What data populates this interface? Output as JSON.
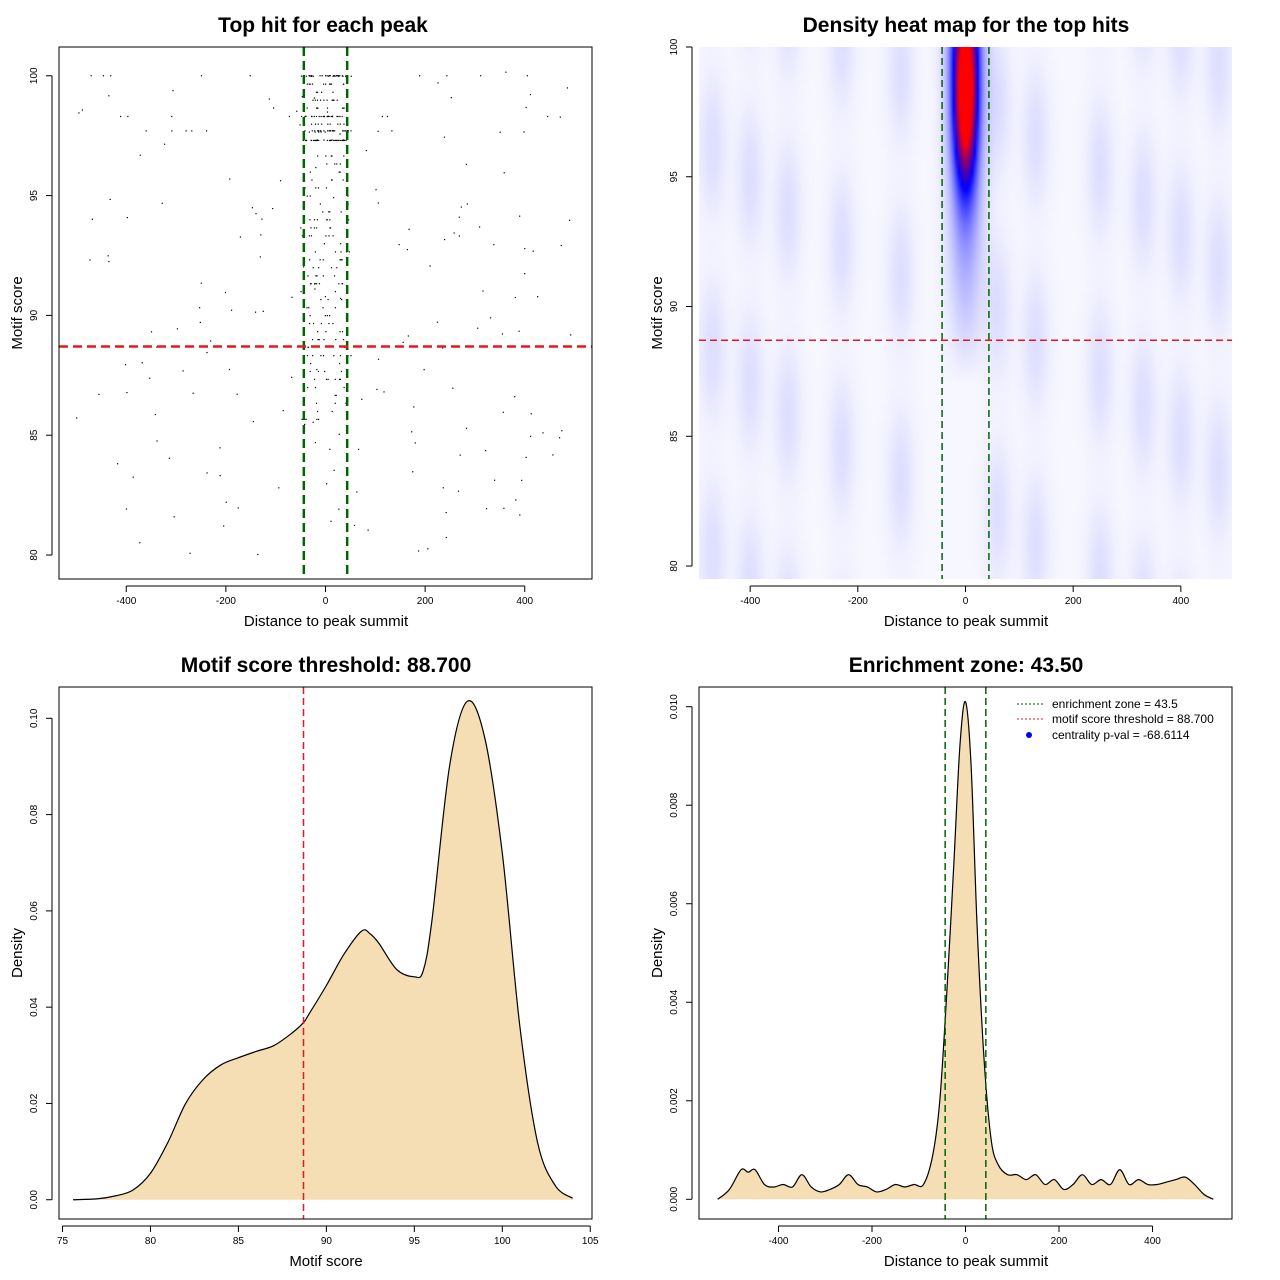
{
  "colors": {
    "enrichment_line": "#006400",
    "threshold_line": "#e41a1c",
    "density_fill": "#f5deb3",
    "point": "#000000",
    "heat_low": "#ffffff",
    "heat_mid": "#0000ff",
    "heat_high": "#ff0000",
    "legend_dot": "#0000ff"
  },
  "chart_data": [
    {
      "id": "scatter",
      "type": "scatter",
      "title": "Top hit for each peak",
      "xlabel": "Distance to peak summit",
      "ylabel": "Motif score",
      "xlim": [
        -535,
        535
      ],
      "ylim": [
        79,
        101.2
      ],
      "xticks": [
        -400,
        -200,
        0,
        200,
        400
      ],
      "yticks": [
        80,
        85,
        90,
        95,
        100
      ],
      "vlines": [
        -43.5,
        43.5
      ],
      "hline": 88.7,
      "point_seed": 7,
      "central_band": [
        -55,
        55
      ],
      "central_fraction": 0.55,
      "total_points": 520
    },
    {
      "id": "heatmap",
      "type": "heatmap",
      "title": "Density heat map for the top hits",
      "xlabel": "Distance to peak summit",
      "ylabel": "Motif score",
      "xlim": [
        -495,
        495
      ],
      "ylim": [
        79.5,
        100
      ],
      "xticks": [
        -400,
        -200,
        0,
        200,
        400
      ],
      "yticks": [
        80,
        85,
        90,
        95,
        100
      ],
      "vlines": [
        -43.5,
        43.5
      ],
      "hline": 88.7,
      "hotspot": {
        "x": 0,
        "y": 98.2,
        "sx": 14,
        "sy": 2.2
      },
      "column": {
        "x": 0,
        "sx": 22
      }
    },
    {
      "id": "score_density",
      "type": "area",
      "title": "Motif score threshold: 88.700",
      "xlabel": "Motif score",
      "ylabel": "Density",
      "xlim": [
        74.8,
        105.1
      ],
      "ylim": [
        -0.004,
        0.1065
      ],
      "xticks": [
        75,
        80,
        85,
        90,
        95,
        100,
        105
      ],
      "yticks": [
        0,
        0.02,
        0.04,
        0.06,
        0.08,
        0.1
      ],
      "ytick_labels": [
        "0.00",
        "0.02",
        "0.04",
        "0.06",
        "0.08",
        "0.10"
      ],
      "vline": 88.7,
      "x": [
        75.6,
        77,
        78,
        79,
        80,
        81,
        82,
        83,
        84,
        85,
        86,
        87,
        88,
        88.7,
        89,
        90,
        91,
        92,
        92.5,
        93,
        94,
        95,
        95.5,
        96,
        97,
        98,
        99,
        100,
        101,
        102,
        103,
        104
      ],
      "y": [
        0.0,
        0.0002,
        0.0008,
        0.002,
        0.0055,
        0.012,
        0.02,
        0.025,
        0.028,
        0.0295,
        0.0308,
        0.032,
        0.0345,
        0.0368,
        0.0385,
        0.0445,
        0.051,
        0.0558,
        0.0552,
        0.0532,
        0.0478,
        0.0463,
        0.0475,
        0.058,
        0.09,
        0.1035,
        0.096,
        0.072,
        0.036,
        0.012,
        0.003,
        0.0003
      ]
    },
    {
      "id": "distance_density",
      "type": "area",
      "title": "Enrichment zone: 43.50",
      "xlabel": "Distance to peak summit",
      "ylabel": "Density",
      "xlim": [
        -570,
        570
      ],
      "ylim": [
        -0.0004,
        0.0104
      ],
      "xticks": [
        -400,
        -200,
        0,
        200,
        400
      ],
      "yticks": [
        0,
        0.002,
        0.004,
        0.006,
        0.008,
        0.01
      ],
      "ytick_labels": [
        "0.000",
        "0.002",
        "0.004",
        "0.006",
        "0.008",
        "0.010"
      ],
      "vlines": [
        -43.5,
        43.5
      ],
      "x": [
        -530,
        -505,
        -480,
        -465,
        -450,
        -430,
        -410,
        -390,
        -370,
        -350,
        -330,
        -310,
        -290,
        -270,
        -250,
        -230,
        -210,
        -190,
        -170,
        -150,
        -130,
        -110,
        -90,
        -70,
        -55,
        -40,
        -25,
        -12,
        0,
        12,
        25,
        40,
        55,
        70,
        90,
        110,
        130,
        150,
        170,
        190,
        210,
        230,
        250,
        270,
        290,
        310,
        330,
        350,
        370,
        390,
        410,
        430,
        450,
        470,
        490,
        510,
        530
      ],
      "y": [
        0.0,
        0.0002,
        0.0006,
        0.00055,
        0.0006,
        0.0003,
        0.00025,
        0.0003,
        0.00025,
        0.0005,
        0.00025,
        0.00015,
        0.0002,
        0.0003,
        0.0005,
        0.0003,
        0.00025,
        0.00015,
        0.0002,
        0.0003,
        0.00025,
        0.0003,
        0.0003,
        0.0009,
        0.002,
        0.0042,
        0.0068,
        0.0092,
        0.0101,
        0.0088,
        0.0055,
        0.0028,
        0.0012,
        0.0007,
        0.0005,
        0.0005,
        0.0004,
        0.0005,
        0.0003,
        0.0004,
        0.0002,
        0.0003,
        0.0005,
        0.0003,
        0.0004,
        0.0003,
        0.0006,
        0.0003,
        0.0004,
        0.0003,
        0.0003,
        0.00035,
        0.0004,
        0.00045,
        0.0003,
        0.0001,
        0.0
      ],
      "legend": [
        {
          "label": "enrichment zone = 43.5",
          "kind": "dotted-line",
          "color": "#006400"
        },
        {
          "label": "motif score threshold = 88.700",
          "kind": "dotted-line",
          "color": "#e41a1c"
        },
        {
          "label": "centrality p-val = -68.6114",
          "kind": "dot",
          "color": "#0000ff"
        }
      ]
    }
  ]
}
